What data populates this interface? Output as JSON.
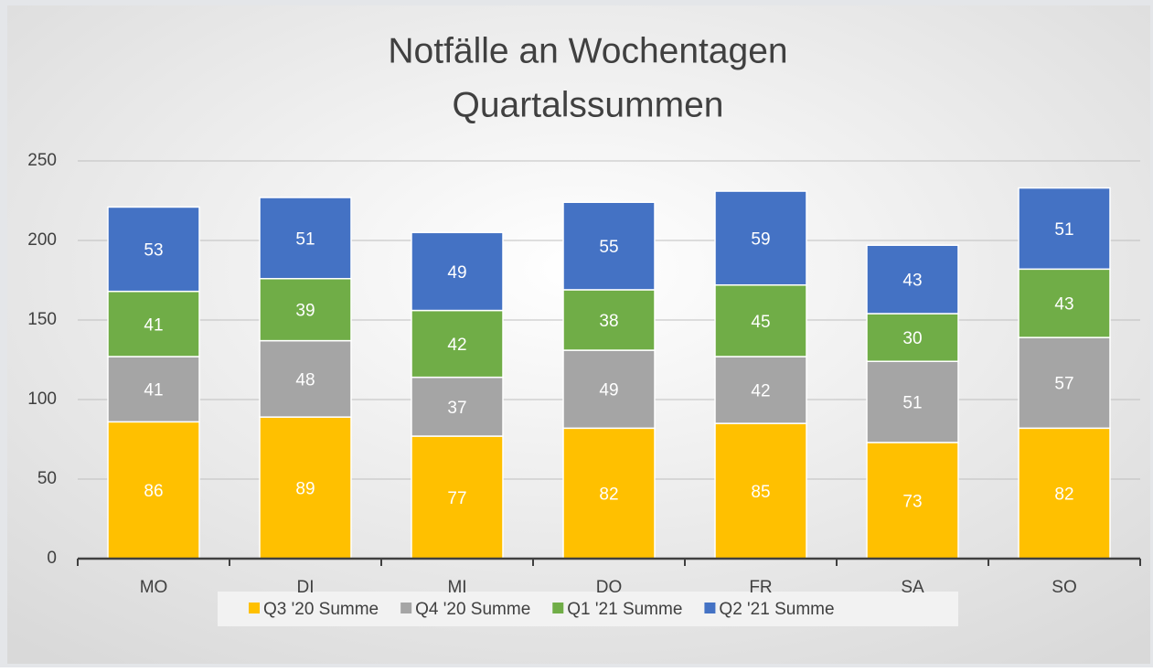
{
  "chart_data": {
    "type": "stacked_bar",
    "title": "Notfälle an Wochentagen",
    "subtitle": "Quartalssummen",
    "categories": [
      "MO",
      "DI",
      "MI",
      "DO",
      "FR",
      "SA",
      "SO"
    ],
    "series": [
      {
        "name": "Q3 '20 Summe",
        "color": "#ffc000",
        "values": [
          86,
          89,
          77,
          82,
          85,
          73,
          82
        ]
      },
      {
        "name": "Q4 '20 Summe",
        "color": "#a5a5a5",
        "values": [
          41,
          48,
          37,
          49,
          42,
          51,
          57
        ]
      },
      {
        "name": "Q1 '21 Summe",
        "color": "#70ad47",
        "values": [
          41,
          39,
          42,
          38,
          45,
          30,
          43
        ]
      },
      {
        "name": "Q2 '21 Summe",
        "color": "#4472c4",
        "values": [
          53,
          51,
          49,
          55,
          59,
          43,
          51
        ]
      }
    ],
    "ylim": [
      0,
      250
    ],
    "yticks": [
      0,
      50,
      100,
      150,
      200,
      250
    ],
    "grid": true,
    "legend": "bottom"
  }
}
